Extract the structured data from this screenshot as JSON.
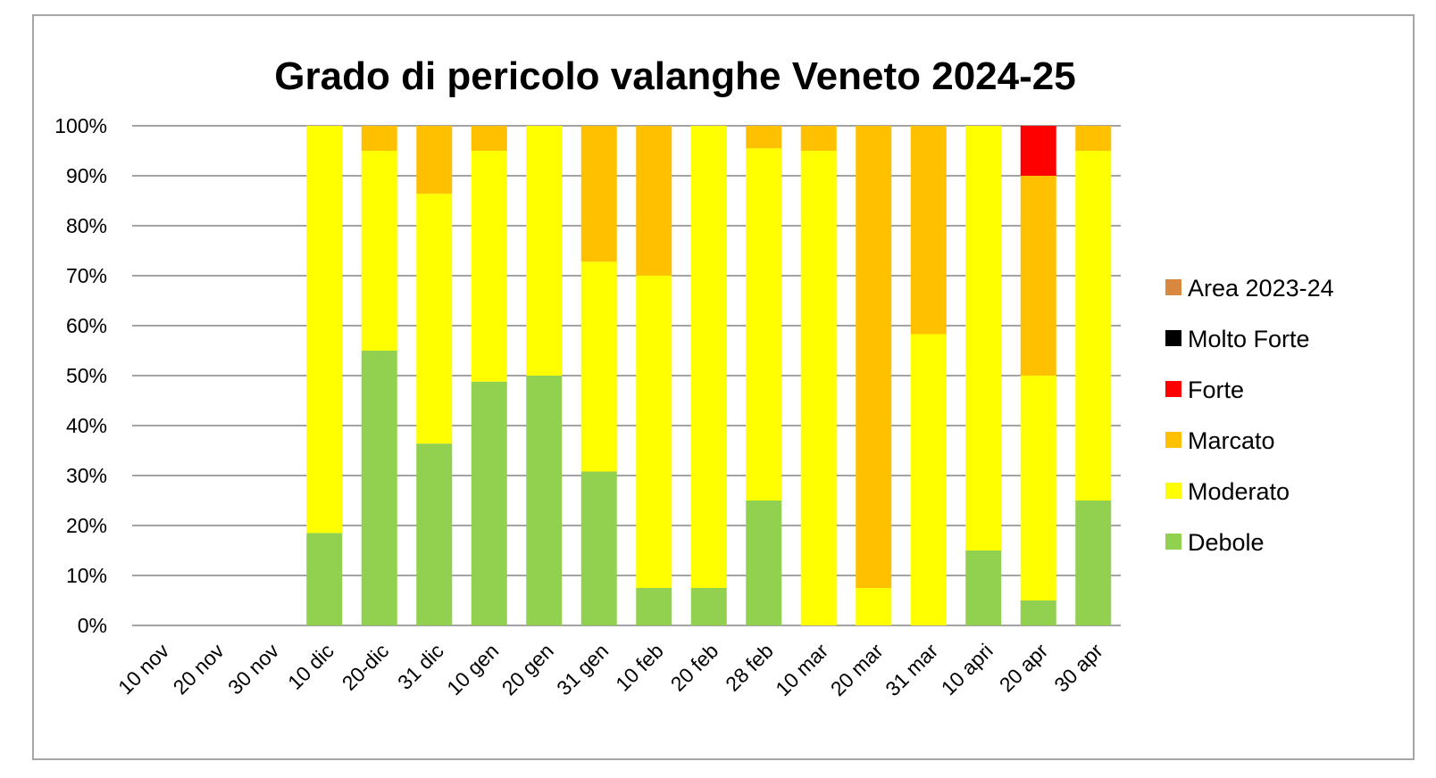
{
  "chart_data": {
    "type": "bar",
    "stacked": true,
    "percent_stacked": true,
    "title": "Grado di pericolo valanghe Veneto 2024-25",
    "categories": [
      "10 nov",
      "20 nov",
      "30 nov",
      "10 dic",
      "20-dic",
      "31 dic",
      "10 gen",
      "20 gen",
      "31 gen",
      "10 feb",
      "20 feb",
      "28 feb",
      "10 mar",
      "20 mar",
      "31 mar",
      "10 apri",
      "20 apr",
      "30 apr"
    ],
    "series": [
      {
        "name": "Debole",
        "color": "#92d050",
        "values": [
          0,
          0,
          0,
          18.5,
          55,
          36.4,
          48.8,
          50,
          30.8,
          7.5,
          7.5,
          25,
          0,
          0,
          0,
          15,
          5,
          25
        ]
      },
      {
        "name": "Moderato",
        "color": "#ffff00",
        "values": [
          0,
          0,
          0,
          81.5,
          40,
          50,
          46.2,
          50,
          42,
          62.5,
          92.5,
          70.5,
          95,
          7.5,
          58.3,
          85,
          45,
          70
        ]
      },
      {
        "name": "Marcato",
        "color": "#ffc000",
        "values": [
          0,
          0,
          0,
          0,
          5,
          13.6,
          5,
          0,
          27.2,
          30,
          0,
          4.5,
          5,
          92.5,
          41.7,
          0,
          40,
          5
        ]
      },
      {
        "name": "Forte",
        "color": "#ff0000",
        "values": [
          0,
          0,
          0,
          0,
          0,
          0,
          0,
          0,
          0,
          0,
          0,
          0,
          0,
          0,
          0,
          0,
          10,
          0
        ]
      },
      {
        "name": "Molto Forte",
        "color": "#000000",
        "values": [
          0,
          0,
          0,
          0,
          0,
          0,
          0,
          0,
          0,
          0,
          0,
          0,
          0,
          0,
          0,
          0,
          0,
          0
        ]
      },
      {
        "name": "Area 2023-24",
        "color": "#d9883f",
        "values": [
          0,
          0,
          0,
          0,
          0,
          0,
          0,
          0,
          0,
          0,
          0,
          0,
          0,
          0,
          0,
          0,
          0,
          0
        ]
      }
    ],
    "legend_order": [
      "Area 2023-24",
      "Molto Forte",
      "Forte",
      "Marcato",
      "Moderato",
      "Debole"
    ],
    "ylim": [
      0,
      100
    ],
    "yticks": [
      "0%",
      "10%",
      "20%",
      "30%",
      "40%",
      "50%",
      "60%",
      "70%",
      "80%",
      "90%",
      "100%"
    ],
    "grid": true,
    "gridline_color": "#868686",
    "legend_position": "right"
  }
}
